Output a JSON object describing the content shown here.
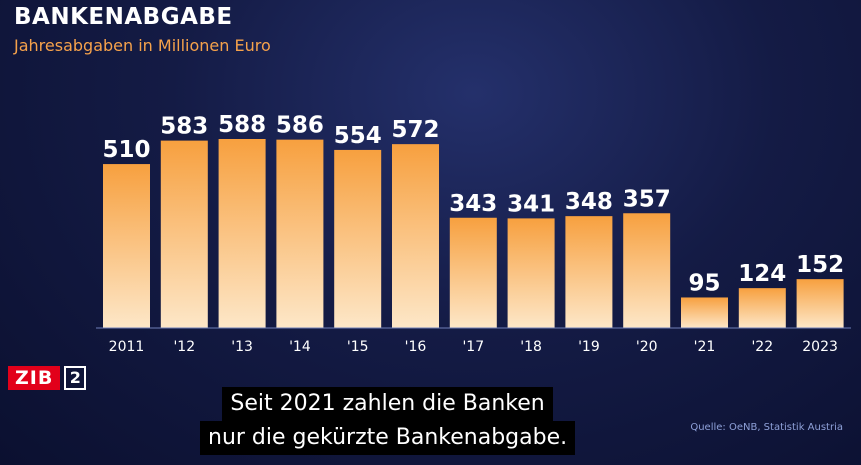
{
  "header": {
    "title": "BANKENABGABE",
    "subtitle": "Jahresabgaben in Millionen Euro"
  },
  "logo": {
    "main": "ZIB",
    "number": "2"
  },
  "caption": {
    "line1": "Seit 2021 zahlen die Banken",
    "line2": "nur die gekürzte Bankenabgabe."
  },
  "source": "Quelle: OeNB, Statistik Austria",
  "colors": {
    "bar_top": "#f7a03f",
    "bar_bottom": "#fde7c8",
    "title": "#ffffff",
    "subtitle": "#f6a24b",
    "background": "#141b45"
  },
  "chart_data": {
    "type": "bar",
    "title": "BANKENABGABE",
    "subtitle": "Jahresabgaben in Millionen Euro",
    "categories": [
      "2011",
      "'12",
      "'13",
      "'14",
      "'15",
      "'16",
      "'17",
      "'18",
      "'19",
      "'20",
      "'21",
      "'22",
      "2023"
    ],
    "values": [
      510,
      583,
      588,
      586,
      554,
      572,
      343,
      341,
      348,
      357,
      95,
      124,
      152
    ],
    "ylim": [
      0,
      588
    ],
    "grid": false,
    "legend": "none"
  }
}
